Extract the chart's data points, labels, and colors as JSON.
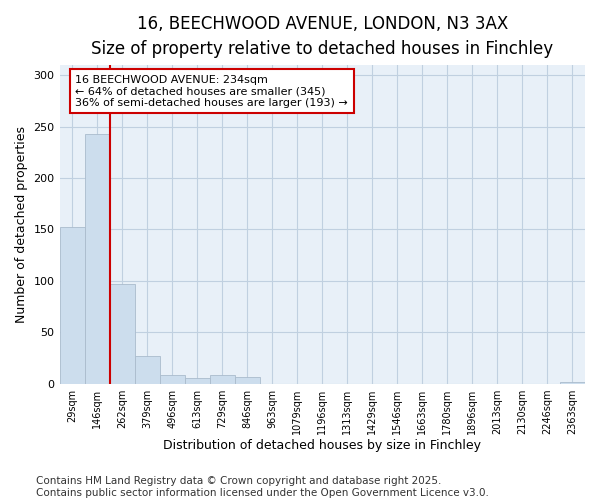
{
  "title_line1": "16, BEECHWOOD AVENUE, LONDON, N3 3AX",
  "title_line2": "Size of property relative to detached houses in Finchley",
  "xlabel": "Distribution of detached houses by size in Finchley",
  "ylabel": "Number of detached properties",
  "bar_labels": [
    "29sqm",
    "146sqm",
    "262sqm",
    "379sqm",
    "496sqm",
    "613sqm",
    "729sqm",
    "846sqm",
    "963sqm",
    "1079sqm",
    "1196sqm",
    "1313sqm",
    "1429sqm",
    "1546sqm",
    "1663sqm",
    "1780sqm",
    "1896sqm",
    "2013sqm",
    "2130sqm",
    "2246sqm",
    "2363sqm"
  ],
  "bar_values": [
    152,
    243,
    97,
    27,
    8,
    5,
    8,
    6,
    0,
    0,
    0,
    0,
    0,
    0,
    0,
    0,
    0,
    0,
    0,
    0,
    2
  ],
  "bar_color": "#ccdded",
  "bar_edge_color": "#aabbcc",
  "vline_x": 1.5,
  "vline_color": "#cc0000",
  "annotation_box_text": "16 BEECHWOOD AVENUE: 234sqm\n← 64% of detached houses are smaller (345)\n36% of semi-detached houses are larger (193) →",
  "annotation_box_color": "#cc0000",
  "annotation_box_bg": "#ffffff",
  "ylim": [
    0,
    310
  ],
  "yticks": [
    0,
    50,
    100,
    150,
    200,
    250,
    300
  ],
  "grid_color": "#c0d0e0",
  "plot_bg_color": "#e8f0f8",
  "footer_line1": "Contains HM Land Registry data © Crown copyright and database right 2025.",
  "footer_line2": "Contains public sector information licensed under the Open Government Licence v3.0.",
  "title_fontsize": 12,
  "axis_label_fontsize": 9,
  "footer_fontsize": 7.5
}
